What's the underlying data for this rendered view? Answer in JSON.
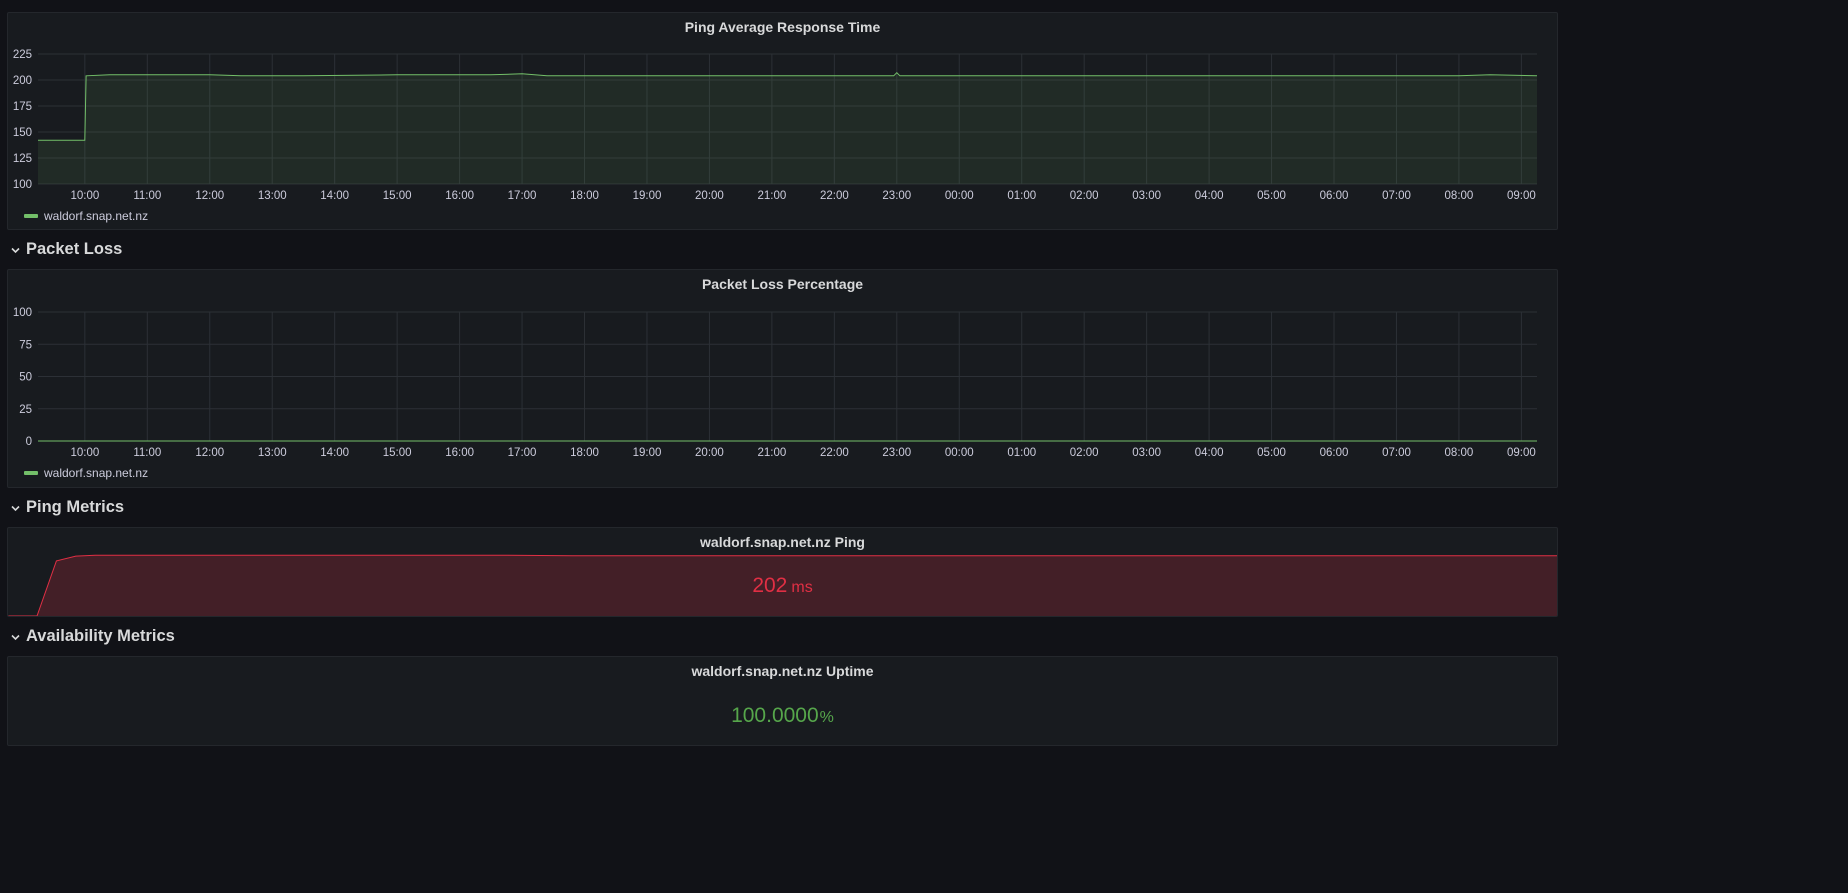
{
  "colors": {
    "series_green": "#73bf69",
    "series_red": "#e02f44",
    "stat_green": "#56a64b"
  },
  "ping_avg_panel": {
    "title": "Ping Average Response Time",
    "legend_label": "waldorf.snap.net.nz"
  },
  "packet_loss_row": {
    "title": "Packet Loss",
    "icon": "chevron-down-icon"
  },
  "packet_loss_panel": {
    "title": "Packet Loss Percentage",
    "legend_label": "waldorf.snap.net.nz"
  },
  "ping_metrics_row": {
    "title": "Ping Metrics",
    "icon": "chevron-down-icon"
  },
  "ping_stat_panel": {
    "title": "waldorf.snap.net.nz Ping",
    "value": "202",
    "unit": "ms"
  },
  "availability_row": {
    "title": "Availability Metrics",
    "icon": "chevron-down-icon"
  },
  "uptime_panel": {
    "title": "waldorf.snap.net.nz Uptime",
    "value": "100.0000",
    "unit": "%"
  },
  "chart_data": [
    {
      "type": "area",
      "title": "Ping Average Response Time",
      "x_ticks": [
        "10:00",
        "11:00",
        "12:00",
        "13:00",
        "14:00",
        "15:00",
        "16:00",
        "17:00",
        "18:00",
        "19:00",
        "20:00",
        "21:00",
        "22:00",
        "23:00",
        "00:00",
        "01:00",
        "02:00",
        "03:00",
        "04:00",
        "05:00",
        "06:00",
        "07:00",
        "08:00",
        "09:00"
      ],
      "y_ticks": [
        100,
        125,
        150,
        175,
        200,
        225
      ],
      "ylim": [
        100,
        225
      ],
      "xlim_hours": [
        9.25,
        33.25
      ],
      "grid": true,
      "legend": "bottom-left",
      "series": [
        {
          "name": "waldorf.snap.net.nz",
          "x_hours": [
            9.25,
            9.75,
            10.0,
            10.02,
            10.4,
            11.0,
            12.0,
            12.5,
            13.5,
            15.0,
            16.5,
            17.0,
            17.4,
            18.0,
            19.0,
            20.0,
            21.0,
            22.0,
            22.95,
            23.0,
            23.05,
            24.0,
            25.0,
            26.0,
            27.0,
            28.0,
            29.0,
            30.0,
            31.0,
            32.0,
            32.5,
            33.25
          ],
          "values": [
            142,
            142,
            142,
            204,
            205,
            205,
            205,
            204,
            204,
            205,
            205,
            206,
            204,
            204,
            204,
            204,
            204,
            204,
            204,
            207,
            204,
            204,
            204,
            204,
            204,
            204,
            204,
            204,
            204,
            204,
            205,
            204
          ]
        }
      ]
    },
    {
      "type": "area",
      "title": "Packet Loss Percentage",
      "x_ticks": [
        "10:00",
        "11:00",
        "12:00",
        "13:00",
        "14:00",
        "15:00",
        "16:00",
        "17:00",
        "18:00",
        "19:00",
        "20:00",
        "21:00",
        "22:00",
        "23:00",
        "00:00",
        "01:00",
        "02:00",
        "03:00",
        "04:00",
        "05:00",
        "06:00",
        "07:00",
        "08:00",
        "09:00"
      ],
      "y_ticks": [
        0,
        25,
        50,
        75,
        100
      ],
      "ylim": [
        0,
        100
      ],
      "xlim_hours": [
        9.25,
        33.25
      ],
      "grid": true,
      "legend": "bottom-left",
      "series": [
        {
          "name": "waldorf.snap.net.nz",
          "x_hours": [
            9.25,
            33.25
          ],
          "values": [
            0,
            0
          ]
        }
      ]
    },
    {
      "type": "area",
      "title": "waldorf.snap.net.nz Ping",
      "sparkline": true,
      "ylim": [
        0,
        205
      ],
      "xlim_hours": [
        9.25,
        33.25
      ],
      "series": [
        {
          "x_hours": [
            9.25,
            9.7,
            10.0,
            10.3,
            10.6,
            12.0,
            15.0,
            17.0,
            18.0,
            23.0,
            28.0,
            33.25
          ],
          "values": [
            0,
            0,
            136,
            148,
            150,
            150,
            150,
            150,
            149,
            149,
            149,
            149
          ]
        }
      ]
    }
  ]
}
